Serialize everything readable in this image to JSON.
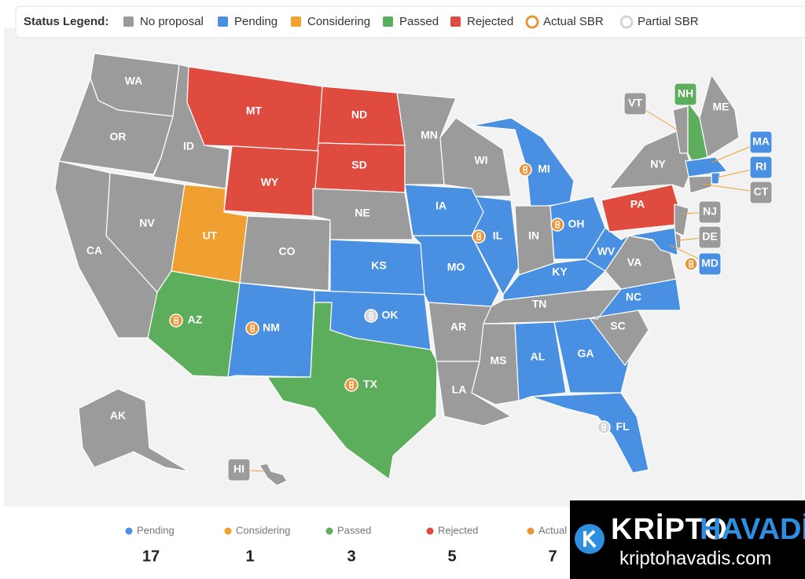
{
  "legend": {
    "title": "Status Legend:",
    "items": [
      {
        "label": "No proposal",
        "color": "#9b9b9b"
      },
      {
        "label": "Pending",
        "color": "#4a90e2"
      },
      {
        "label": "Considering",
        "color": "#f0a030"
      },
      {
        "label": "Passed",
        "color": "#5cad5c"
      },
      {
        "label": "Rejected",
        "color": "#e04b3f"
      },
      {
        "label": "Actual SBR",
        "color": "#e8963a"
      },
      {
        "label": "Partial SBR",
        "color": "#d6d6d6"
      }
    ]
  },
  "states": [
    {
      "abbr": "WA",
      "status": 0
    },
    {
      "abbr": "OR",
      "status": 0
    },
    {
      "abbr": "ID",
      "status": 0
    },
    {
      "abbr": "MT",
      "status": 4
    },
    {
      "abbr": "ND",
      "status": 4
    },
    {
      "abbr": "SD",
      "status": 4
    },
    {
      "abbr": "WY",
      "status": 4
    },
    {
      "abbr": "NV",
      "status": 0
    },
    {
      "abbr": "CA",
      "status": 0
    },
    {
      "abbr": "UT",
      "status": 2
    },
    {
      "abbr": "CO",
      "status": 0
    },
    {
      "abbr": "AZ",
      "status": 3,
      "sbr": 5
    },
    {
      "abbr": "NM",
      "status": 1,
      "sbr": 5
    },
    {
      "abbr": "NE",
      "status": 0
    },
    {
      "abbr": "KS",
      "status": 1
    },
    {
      "abbr": "OK",
      "status": 1,
      "sbr": 6
    },
    {
      "abbr": "TX",
      "status": 3,
      "sbr": 5
    },
    {
      "abbr": "MN",
      "status": 0
    },
    {
      "abbr": "IA",
      "status": 1
    },
    {
      "abbr": "MO",
      "status": 1
    },
    {
      "abbr": "AR",
      "status": 0
    },
    {
      "abbr": "LA",
      "status": 0
    },
    {
      "abbr": "WI",
      "status": 0
    },
    {
      "abbr": "IL",
      "status": 1,
      "sbr": 5
    },
    {
      "abbr": "MI",
      "status": 1,
      "sbr": 5
    },
    {
      "abbr": "IN",
      "status": 0
    },
    {
      "abbr": "OH",
      "status": 1,
      "sbr": 5
    },
    {
      "abbr": "KY",
      "status": 1
    },
    {
      "abbr": "TN",
      "status": 0
    },
    {
      "abbr": "MS",
      "status": 0
    },
    {
      "abbr": "AL",
      "status": 1
    },
    {
      "abbr": "GA",
      "status": 1
    },
    {
      "abbr": "FL",
      "status": 1,
      "sbr": 6
    },
    {
      "abbr": "SC",
      "status": 0
    },
    {
      "abbr": "NC",
      "status": 1
    },
    {
      "abbr": "VA",
      "status": 0
    },
    {
      "abbr": "WV",
      "status": 1
    },
    {
      "abbr": "PA",
      "status": 4
    },
    {
      "abbr": "NY",
      "status": 0
    },
    {
      "abbr": "VT",
      "status": 0
    },
    {
      "abbr": "NH",
      "status": 3
    },
    {
      "abbr": "ME",
      "status": 0
    },
    {
      "abbr": "MA",
      "status": 1
    },
    {
      "abbr": "RI",
      "status": 1
    },
    {
      "abbr": "CT",
      "status": 0
    },
    {
      "abbr": "NJ",
      "status": 0
    },
    {
      "abbr": "DE",
      "status": 0
    },
    {
      "abbr": "MD",
      "status": 1,
      "sbr": 5
    },
    {
      "abbr": "AK",
      "status": 0
    },
    {
      "abbr": "HI",
      "status": 0
    }
  ],
  "stats": [
    {
      "label": "Pending",
      "value": 17,
      "color": "#4a90e2"
    },
    {
      "label": "Considering",
      "value": 1,
      "color": "#f0a030"
    },
    {
      "label": "Passed",
      "value": 3,
      "color": "#5cad5c"
    },
    {
      "label": "Rejected",
      "value": 5,
      "color": "#e04b3f"
    },
    {
      "label": "Actual S",
      "value": 7,
      "color": "#e8963a"
    }
  ],
  "watermark": {
    "brand1": "KRİPTO",
    "brand2": "HAVADİS",
    "url": "kriptohavadis.com"
  }
}
